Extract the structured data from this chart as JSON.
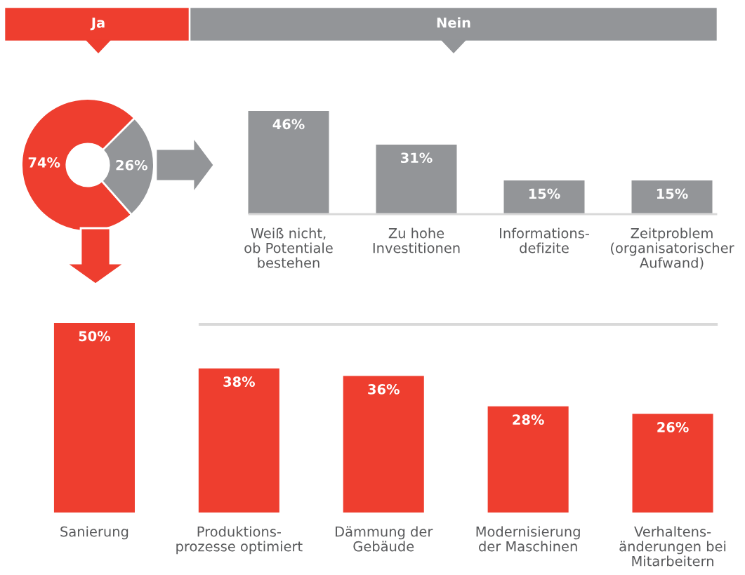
{
  "chart_data": [
    {
      "type": "donut",
      "categories": [
        null,
        null
      ],
      "annotations": [
        "Ja",
        "Nein"
      ],
      "values": [
        74,
        26
      ],
      "colors": [
        "#ee3e2f",
        "#939598"
      ],
      "value_labels": [
        "74%",
        "26%"
      ]
    },
    {
      "type": "bar",
      "categories": [
        "Weiß nicht,\nob Potentiale\nbestehen",
        "Zu hohe\nInvestitionen",
        "Informations-\ndefizite",
        "Zeitproblem\n(organisatorischer\nAufwand)"
      ],
      "values": [
        46,
        31,
        15,
        15
      ],
      "color": "#939598",
      "value_labels": [
        "46%",
        "31%",
        "15%",
        "15%"
      ]
    },
    {
      "type": "bar",
      "categories": [
        "Sanierung",
        "Produktions-\nprozesse optimiert",
        "Dämmung der\nGebäude",
        "Modernisierung\nder Maschinen",
        "Verhaltens-\nänderungen bei\nMitarbeitern"
      ],
      "values": [
        50,
        38,
        36,
        28,
        26
      ],
      "color": "#ee3e2f",
      "value_labels": [
        "50%",
        "38%",
        "36%",
        "28%",
        "26%"
      ]
    }
  ]
}
